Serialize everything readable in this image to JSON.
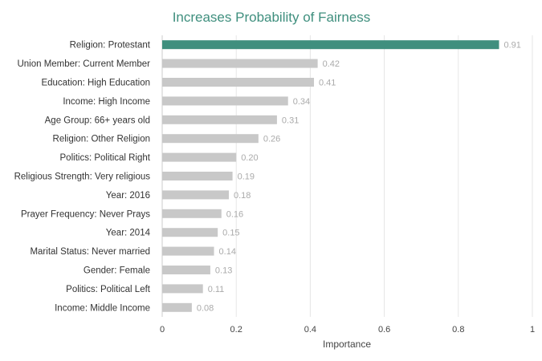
{
  "chart_data": {
    "type": "bar",
    "orientation": "horizontal",
    "title": "Increases Probability of Fairness",
    "xlabel": "Importance",
    "ylabel": "",
    "xlim": [
      0,
      1
    ],
    "ticks": [
      "0",
      "0.2",
      "0.4",
      "0.6",
      "0.8",
      "1"
    ],
    "tick_values": [
      0,
      0.2,
      0.4,
      0.6,
      0.8,
      1
    ],
    "grid": true,
    "legend": "none",
    "categories": [
      "Religion: Protestant",
      "Union Member: Current Member",
      "Education: High Education",
      "Income: High Income",
      "Age Group: 66+ years old",
      "Religion: Other Religion",
      "Politics: Political Right",
      "Religious Strength: Very religious",
      "Year: 2016",
      "Prayer Frequency: Never Prays",
      "Year: 2014",
      "Marital Status: Never married",
      "Gender: Female",
      "Politics: Political Left",
      "Income: Middle Income"
    ],
    "values": [
      0.91,
      0.42,
      0.41,
      0.34,
      0.31,
      0.26,
      0.2,
      0.19,
      0.18,
      0.16,
      0.15,
      0.14,
      0.13,
      0.11,
      0.08
    ],
    "value_labels": [
      "0.91",
      "0.42",
      "0.41",
      "0.34",
      "0.31",
      "0.26",
      "0.20",
      "0.19",
      "0.18",
      "0.16",
      "0.15",
      "0.14",
      "0.13",
      "0.11",
      "0.08"
    ],
    "colors": {
      "highlight": "#3f8f7e",
      "bar": "#c8c8c8",
      "title": "#3f8f7e"
    }
  }
}
